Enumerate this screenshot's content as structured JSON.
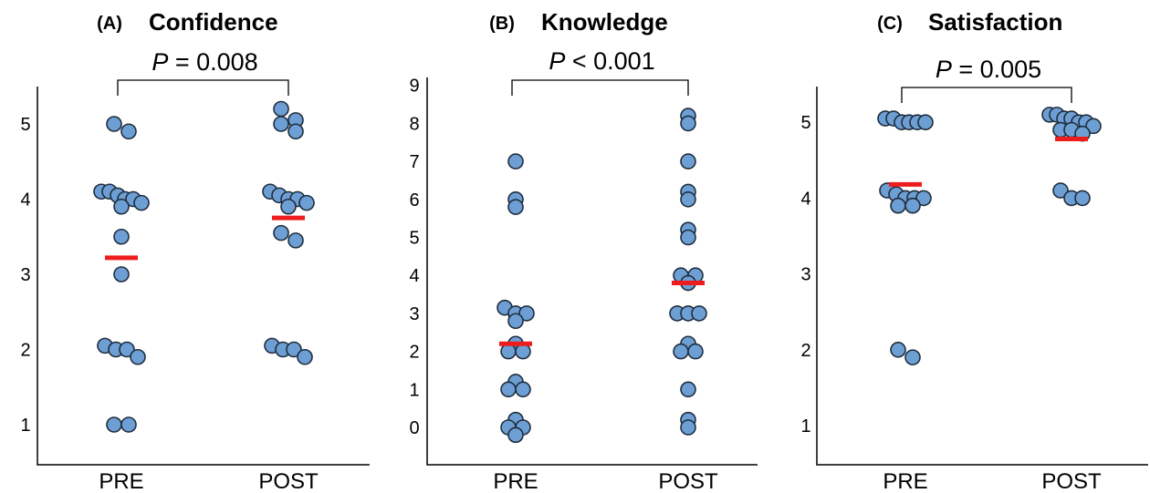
{
  "chart_data": [
    {
      "type": "scatter",
      "panel_label": "(A)",
      "title": "Confidence",
      "categories": [
        "PRE",
        "POST"
      ],
      "yticks": [
        "1",
        "2",
        "3",
        "4",
        "5"
      ],
      "ylim": [
        0.5,
        5.6
      ],
      "pvalue": {
        "prefix": "P",
        "rest": " = 0.008"
      },
      "series": [
        {
          "category": "PRE",
          "mean": 3.22,
          "values": [
            5.0,
            4.9,
            4.1,
            4.1,
            4.05,
            4.0,
            4.0,
            3.95,
            3.9,
            3.5,
            3.0,
            2.05,
            2.0,
            2.0,
            1.9,
            1.0,
            1.0
          ]
        },
        {
          "category": "POST",
          "mean": 3.75,
          "values": [
            5.2,
            5.05,
            5.0,
            4.9,
            4.1,
            4.05,
            4.0,
            4.0,
            3.95,
            3.9,
            3.55,
            3.45,
            2.05,
            2.0,
            2.0,
            1.9
          ]
        }
      ]
    },
    {
      "type": "scatter",
      "panel_label": "(B)",
      "title": "Knowledge",
      "categories": [
        "PRE",
        "POST"
      ],
      "yticks": [
        "0",
        "1",
        "2",
        "3",
        "4",
        "5",
        "6",
        "7",
        "8",
        "9"
      ],
      "ylim": [
        -0.8,
        9
      ],
      "pvalue": {
        "prefix": "P",
        "rest": " < 0.001"
      },
      "series": [
        {
          "category": "PRE",
          "mean": 2.2,
          "values": [
            7.0,
            6.0,
            5.8,
            3.15,
            3.0,
            3.0,
            2.8,
            2.2,
            2.0,
            2.0,
            1.2,
            1.0,
            1.0,
            0.2,
            0.0,
            0.0,
            -0.2
          ]
        },
        {
          "category": "POST",
          "mean": 3.8,
          "values": [
            8.2,
            8.0,
            7.0,
            6.2,
            6.0,
            5.2,
            5.0,
            4.0,
            4.0,
            3.8,
            3.0,
            3.0,
            3.0,
            2.2,
            2.0,
            2.0,
            1.0,
            0.2,
            0.0
          ]
        }
      ]
    },
    {
      "type": "scatter",
      "panel_label": "(C)",
      "title": "Satisfaction",
      "categories": [
        "PRE",
        "POST"
      ],
      "yticks": [
        "1",
        "2",
        "3",
        "4",
        "5"
      ],
      "ylim": [
        0.5,
        5.45
      ],
      "pvalue": {
        "prefix": "P",
        "rest": " = 0.005"
      },
      "series": [
        {
          "category": "PRE",
          "mean": 4.18,
          "values": [
            5.05,
            5.0,
            5.0,
            5.0,
            5.05,
            5.0,
            4.1,
            4.05,
            4.0,
            4.0,
            4.0,
            3.9,
            3.9,
            2.0,
            1.9
          ]
        },
        {
          "category": "POST",
          "mean": 4.78,
          "values": [
            5.1,
            5.1,
            5.05,
            5.05,
            5.0,
            5.0,
            4.95,
            4.9,
            4.9,
            4.85,
            4.1,
            4.0,
            4.0
          ]
        }
      ]
    }
  ]
}
